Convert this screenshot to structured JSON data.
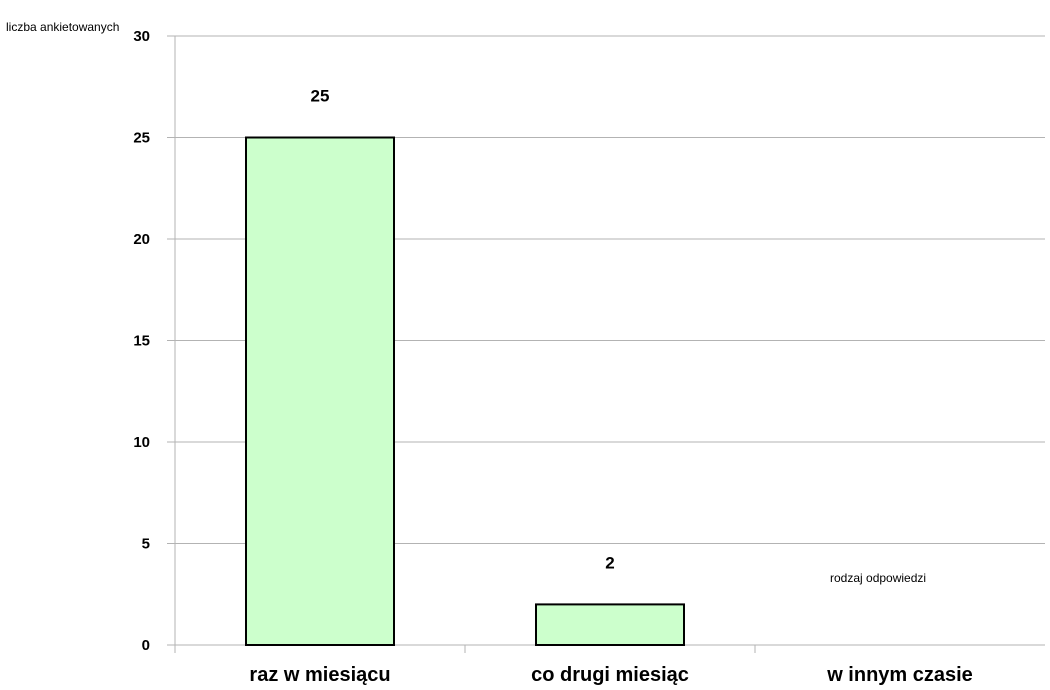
{
  "chart_data": {
    "type": "bar",
    "categories": [
      "raz w miesiącu",
      "co drugi miesiąc",
      "w innym czasie"
    ],
    "values": [
      25,
      2,
      0
    ],
    "data_labels": [
      "25",
      "2",
      ""
    ],
    "title": "",
    "xlabel": "rodzaj odpowiedzi",
    "ylabel": "liczba ankietowanych",
    "ylim": [
      0,
      30
    ],
    "yticks": [
      0,
      5,
      10,
      15,
      20,
      25,
      30
    ],
    "grid": true,
    "legend": "none",
    "colors": {
      "bar_fill": "#ccffcc",
      "bar_stroke": "#000000",
      "grid": "#b3b3b3",
      "axis": "#b3b3b3"
    }
  }
}
